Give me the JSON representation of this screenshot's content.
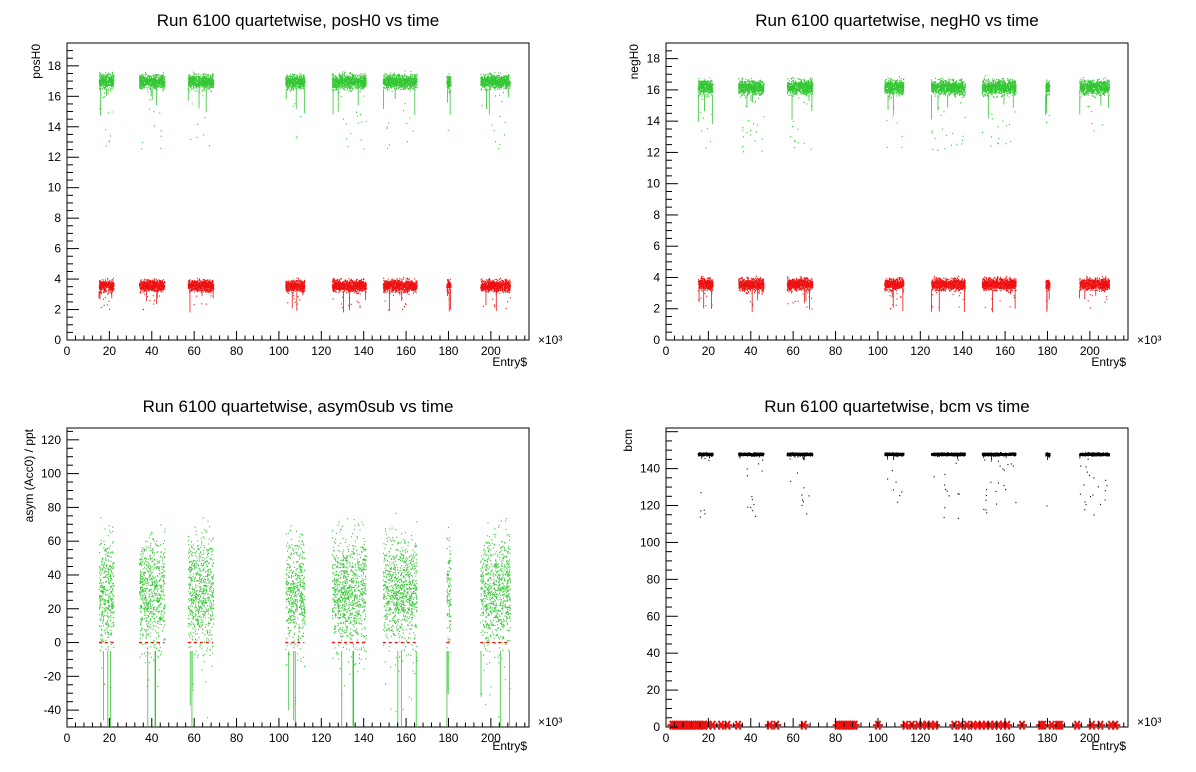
{
  "colors": {
    "green": "#33c633",
    "red": "#ee1111",
    "black": "#000000"
  },
  "chart_data": [
    {
      "id": "posH0",
      "type": "scatter",
      "title": "Run 6100 quartetwise, posH0 vs time",
      "xlabel": "Entry$",
      "ylabel": "posH0",
      "x_exponent": "×10³",
      "xlim": [
        0,
        218
      ],
      "ylim": [
        0,
        19.5
      ],
      "xticks": [
        0,
        20,
        40,
        60,
        80,
        100,
        120,
        140,
        160,
        180,
        200
      ],
      "yticks": [
        0,
        2,
        4,
        6,
        8,
        10,
        12,
        14,
        16,
        18
      ],
      "x_units": "thousand entries",
      "segments": [
        [
          15,
          22
        ],
        [
          34,
          46
        ],
        [
          57,
          69
        ],
        [
          103,
          112
        ],
        [
          125,
          141
        ],
        [
          149,
          165
        ],
        [
          179,
          181
        ],
        [
          195,
          209
        ]
      ],
      "series": [
        {
          "color": "green",
          "center": 17.0,
          "spread": 1.0,
          "outlier_low": 12.5
        },
        {
          "color": "red",
          "center": 3.6,
          "spread": 0.8,
          "outlier_low": 2.0
        }
      ]
    },
    {
      "id": "negH0",
      "type": "scatter",
      "title": "Run 6100 quartetwise, negH0 vs time",
      "xlabel": "Entry$",
      "ylabel": "negH0",
      "x_exponent": "×10³",
      "xlim": [
        0,
        218
      ],
      "ylim": [
        0,
        19
      ],
      "xticks": [
        0,
        20,
        40,
        60,
        80,
        100,
        120,
        140,
        160,
        180,
        200
      ],
      "yticks": [
        0,
        2,
        4,
        6,
        8,
        10,
        12,
        14,
        16,
        18
      ],
      "x_units": "thousand entries",
      "segments": [
        [
          15,
          22
        ],
        [
          34,
          46
        ],
        [
          57,
          69
        ],
        [
          103,
          112
        ],
        [
          125,
          141
        ],
        [
          149,
          165
        ],
        [
          179,
          181
        ],
        [
          195,
          209
        ]
      ],
      "series": [
        {
          "color": "green",
          "center": 16.2,
          "spread": 1.0,
          "outlier_low": 12.0
        },
        {
          "color": "red",
          "center": 3.6,
          "spread": 0.8,
          "outlier_low": 2.0
        }
      ]
    },
    {
      "id": "asym0sub",
      "type": "scatter",
      "title": "Run 6100 quartetwise, asym0sub vs time",
      "xlabel": "Entry$",
      "ylabel": "asym (Acc0) / ppt",
      "x_exponent": "×10³",
      "xlim": [
        0,
        218
      ],
      "ylim": [
        -50,
        127
      ],
      "xticks": [
        0,
        20,
        40,
        60,
        80,
        100,
        120,
        140,
        160,
        180,
        200
      ],
      "yticks": [
        -40,
        -20,
        0,
        20,
        40,
        60,
        80,
        100,
        120
      ],
      "x_units": "thousand entries",
      "segments": [
        [
          15,
          22
        ],
        [
          34,
          46
        ],
        [
          57,
          69
        ],
        [
          103,
          112
        ],
        [
          125,
          141
        ],
        [
          149,
          165
        ],
        [
          179,
          181
        ],
        [
          195,
          209
        ]
      ],
      "series": [
        {
          "color": "green",
          "center": 30,
          "spread": 70,
          "outlier_low": -45
        },
        {
          "color": "red",
          "center": 0,
          "spread": 0,
          "outlier_low": 0
        }
      ]
    },
    {
      "id": "bcm",
      "type": "scatter",
      "title": "Run 6100 quartetwise, bcm vs time",
      "xlabel": "Entry$",
      "ylabel": "bcm",
      "x_exponent": "×10³",
      "xlim": [
        0,
        218
      ],
      "ylim": [
        0,
        162
      ],
      "xticks": [
        0,
        20,
        40,
        60,
        80,
        100,
        120,
        140,
        160,
        180,
        200
      ],
      "yticks": [
        0,
        20,
        40,
        60,
        80,
        100,
        120,
        140
      ],
      "x_units": "thousand entries",
      "segments": [
        [
          15,
          22
        ],
        [
          34,
          46
        ],
        [
          57,
          69
        ],
        [
          103,
          112
        ],
        [
          125,
          141
        ],
        [
          149,
          165
        ],
        [
          179,
          181
        ],
        [
          195,
          209
        ]
      ],
      "series": [
        {
          "color": "black",
          "center": 148,
          "spread": 1.5,
          "outlier_low": 113
        }
      ],
      "red_markers_x": [
        3,
        4,
        5,
        6,
        7,
        8,
        9,
        10,
        11,
        12,
        13,
        14,
        15,
        16,
        17,
        18,
        20,
        22,
        26,
        29,
        34,
        49,
        52,
        65,
        81,
        82,
        83,
        84,
        85,
        86,
        87,
        88,
        89,
        100,
        113,
        116,
        119,
        121,
        123,
        125,
        127,
        136,
        139,
        142,
        145,
        147,
        149,
        151,
        153,
        155,
        157,
        159,
        161,
        168,
        177,
        178,
        182,
        185,
        186,
        194,
        201,
        205,
        210,
        212
      ]
    }
  ]
}
